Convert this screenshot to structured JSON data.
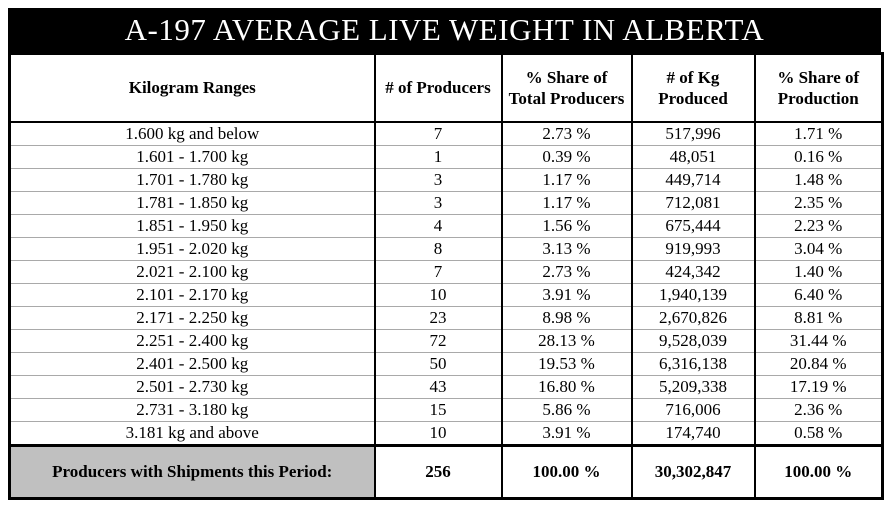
{
  "chart_data": {
    "type": "table",
    "title": "A-197 AVERAGE LIVE WEIGHT IN ALBERTA",
    "columns": [
      "Kilogram Ranges",
      "# of Producers",
      "% Share of Total Producers",
      "# of Kg Produced",
      "% Share of Production"
    ],
    "rows": [
      [
        "1.600 kg and below",
        "7",
        "2.73 %",
        "517,996",
        "1.71 %"
      ],
      [
        "1.601 - 1.700 kg",
        "1",
        "0.39 %",
        "48,051",
        "0.16 %"
      ],
      [
        "1.701 - 1.780 kg",
        "3",
        "1.17 %",
        "449,714",
        "1.48 %"
      ],
      [
        "1.781 - 1.850 kg",
        "3",
        "1.17 %",
        "712,081",
        "2.35 %"
      ],
      [
        "1.851 - 1.950 kg",
        "4",
        "1.56 %",
        "675,444",
        "2.23 %"
      ],
      [
        "1.951 - 2.020 kg",
        "8",
        "3.13 %",
        "919,993",
        "3.04 %"
      ],
      [
        "2.021 - 2.100 kg",
        "7",
        "2.73 %",
        "424,342",
        "1.40 %"
      ],
      [
        "2.101 - 2.170 kg",
        "10",
        "3.91 %",
        "1,940,139",
        "6.40 %"
      ],
      [
        "2.171 - 2.250 kg",
        "23",
        "8.98 %",
        "2,670,826",
        "8.81 %"
      ],
      [
        "2.251 - 2.400 kg",
        "72",
        "28.13 %",
        "9,528,039",
        "31.44 %"
      ],
      [
        "2.401 - 2.500 kg",
        "50",
        "19.53 %",
        "6,316,138",
        "20.84 %"
      ],
      [
        "2.501 - 2.730 kg",
        "43",
        "16.80 %",
        "5,209,338",
        "17.19 %"
      ],
      [
        "2.731 - 3.180 kg",
        "15",
        "5.86 %",
        "716,006",
        "2.36 %"
      ],
      [
        "3.181 kg and above",
        "10",
        "3.91 %",
        "174,740",
        "0.58 %"
      ]
    ],
    "footer": [
      "Producers with Shipments this Period:",
      "256",
      "100.00 %",
      "30,302,847",
      "100.00 %"
    ],
    "layout_hints": {
      "grid": true,
      "title_position": "top-banner"
    }
  },
  "colors": {
    "title_background": "#000000",
    "title_text": "#ffffff",
    "totals_label_background": "#c0c0c0",
    "grid_border": "#000000",
    "row_divider": "#a9a9a9"
  }
}
